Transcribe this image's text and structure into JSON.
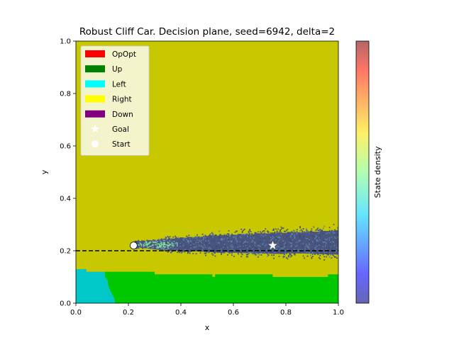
{
  "chart_data": {
    "type": "heatmap",
    "title": "Robust Cliff Car. Decision plane, seed=6942, delta=2",
    "xlabel": "x",
    "ylabel": "y",
    "colorbar_label": "State density",
    "xlim": [
      0.0,
      1.0
    ],
    "ylim": [
      0.0,
      1.0
    ],
    "xticks": [
      {
        "value": 0.0,
        "label": "0.0"
      },
      {
        "value": 0.2,
        "label": "0.2"
      },
      {
        "value": 0.4,
        "label": "0.4"
      },
      {
        "value": 0.6,
        "label": "0.6"
      },
      {
        "value": 0.8,
        "label": "0.8"
      },
      {
        "value": 1.0,
        "label": "1.0"
      }
    ],
    "yticks": [
      {
        "value": 0.0,
        "label": "0.0"
      },
      {
        "value": 0.2,
        "label": "0.2"
      },
      {
        "value": 0.4,
        "label": "0.4"
      },
      {
        "value": 0.6,
        "label": "0.6"
      },
      {
        "value": 0.8,
        "label": "0.8"
      },
      {
        "value": 1.0,
        "label": "1.0"
      }
    ],
    "legend": {
      "placement": "upper-left",
      "entries": [
        {
          "label": "OpOpt",
          "color": "#ff0000",
          "marker": "patch"
        },
        {
          "label": "Up",
          "color": "#008000",
          "marker": "patch"
        },
        {
          "label": "Left",
          "color": "#00ffff",
          "marker": "patch"
        },
        {
          "label": "Right",
          "color": "#ffff00",
          "marker": "patch"
        },
        {
          "label": "Down",
          "color": "#800080",
          "marker": "patch"
        },
        {
          "label": "Goal",
          "color": "#ffffff",
          "marker": "star"
        },
        {
          "label": "Start",
          "color": "#ffffff",
          "marker": "circle"
        }
      ]
    },
    "decision_regions": {
      "background": {
        "action": "Right",
        "color": "#c8c800"
      },
      "regions": [
        {
          "action": "Left",
          "color": "#00c8c8",
          "outline": [
            [
              0.0,
              0.0
            ],
            [
              0.0,
              0.13
            ],
            [
              0.04,
              0.13
            ],
            [
              0.04,
              0.12
            ],
            [
              0.11,
              0.12
            ],
            [
              0.11,
              0.1
            ],
            [
              0.12,
              0.09
            ],
            [
              0.125,
              0.06
            ],
            [
              0.135,
              0.04
            ],
            [
              0.145,
              0.02
            ],
            [
              0.15,
              0.0
            ]
          ]
        },
        {
          "action": "Up",
          "color": "#00c800",
          "outline": [
            [
              0.11,
              0.12
            ],
            [
              0.3,
              0.12
            ],
            [
              0.3,
              0.11
            ],
            [
              0.52,
              0.11
            ],
            [
              0.52,
              0.1
            ],
            [
              0.53,
              0.1
            ],
            [
              0.53,
              0.11
            ],
            [
              0.75,
              0.11
            ],
            [
              0.75,
              0.1
            ],
            [
              0.96,
              0.1
            ],
            [
              0.96,
              0.11
            ],
            [
              1.0,
              0.11
            ],
            [
              1.0,
              0.0
            ],
            [
              0.15,
              0.0
            ],
            [
              0.145,
              0.02
            ],
            [
              0.135,
              0.04
            ],
            [
              0.125,
              0.06
            ],
            [
              0.12,
              0.09
            ],
            [
              0.11,
              0.1
            ]
          ]
        }
      ]
    },
    "cliff_line": {
      "y": 0.2,
      "style": "dashed",
      "color": "#000000"
    },
    "start": {
      "x": 0.22,
      "y": 0.22
    },
    "goal": {
      "x": 0.75,
      "y": 0.22
    },
    "density_band": {
      "x_range": [
        0.22,
        1.0
      ],
      "center_y": [
        [
          0.22,
          0.222
        ],
        [
          0.4,
          0.223
        ],
        [
          0.6,
          0.225
        ],
        [
          0.8,
          0.228
        ],
        [
          1.0,
          0.23
        ]
      ],
      "half_width": [
        [
          0.22,
          0.012
        ],
        [
          0.4,
          0.025
        ],
        [
          0.6,
          0.035
        ],
        [
          0.8,
          0.04
        ],
        [
          1.0,
          0.045
        ]
      ],
      "peak_density_x": 0.3
    },
    "colorbar": {
      "cmap": "jet",
      "alpha": 0.6,
      "ticks": []
    }
  }
}
